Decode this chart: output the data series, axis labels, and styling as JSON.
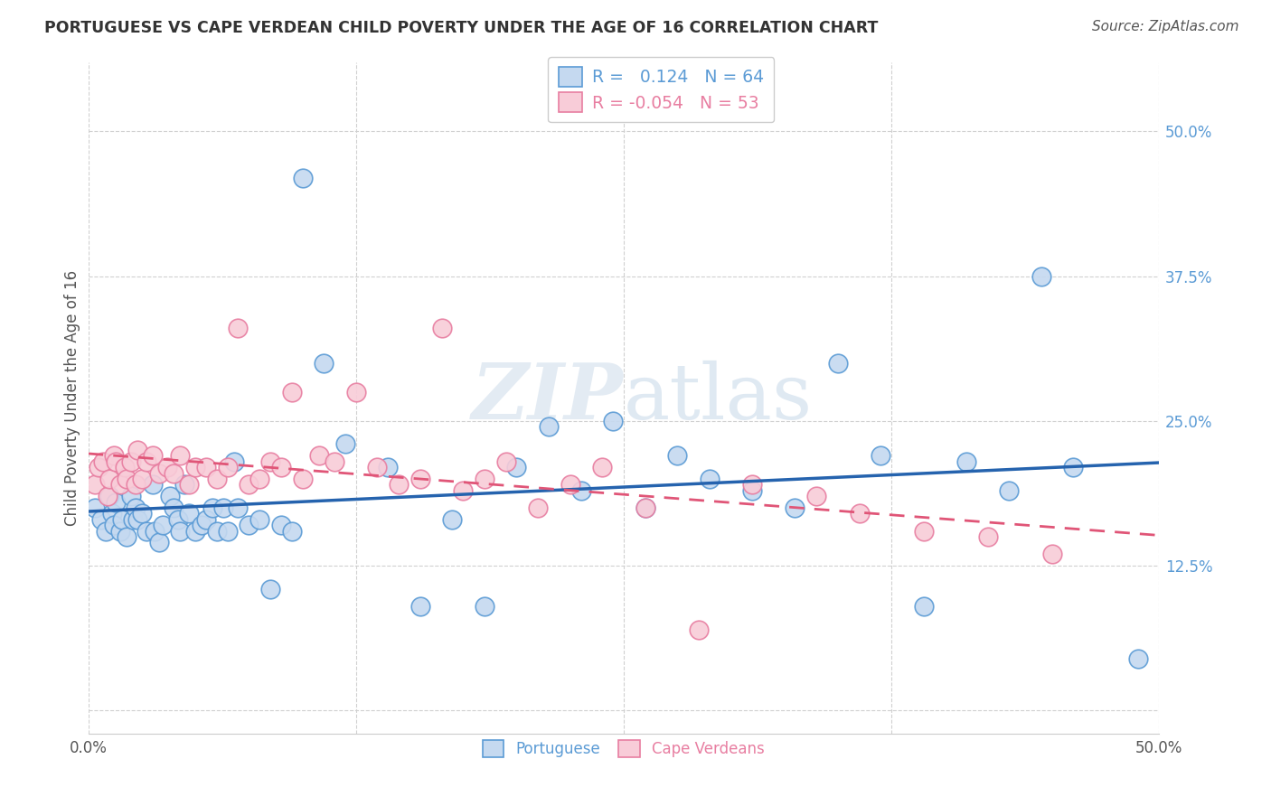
{
  "title": "PORTUGUESE VS CAPE VERDEAN CHILD POVERTY UNDER THE AGE OF 16 CORRELATION CHART",
  "source": "Source: ZipAtlas.com",
  "ylabel": "Child Poverty Under the Age of 16",
  "xlim": [
    0.0,
    0.5
  ],
  "ylim": [
    -0.02,
    0.56
  ],
  "ytick_labels_right": [
    "50.0%",
    "37.5%",
    "25.0%",
    "12.5%"
  ],
  "ytick_positions_right": [
    0.5,
    0.375,
    0.25,
    0.125
  ],
  "portuguese_color": "#c5d9f0",
  "cape_verdean_color": "#f8ccd8",
  "portuguese_edge": "#5b9bd5",
  "cape_verdean_edge": "#e87ea1",
  "trend_portuguese_color": "#2563ae",
  "trend_cape_verdean_color": "#e05577",
  "background_color": "#ffffff",
  "grid_color": "#d0d0d0",
  "legend_r_portuguese": "0.124",
  "legend_n_portuguese": "64",
  "legend_r_cape_verdean": "-0.054",
  "legend_n_cape_verdean": "53",
  "portuguese_x": [
    0.003,
    0.006,
    0.008,
    0.01,
    0.011,
    0.012,
    0.013,
    0.015,
    0.016,
    0.018,
    0.02,
    0.021,
    0.022,
    0.023,
    0.025,
    0.027,
    0.03,
    0.031,
    0.033,
    0.035,
    0.038,
    0.04,
    0.042,
    0.043,
    0.045,
    0.047,
    0.05,
    0.053,
    0.055,
    0.058,
    0.06,
    0.063,
    0.065,
    0.068,
    0.07,
    0.075,
    0.08,
    0.085,
    0.09,
    0.095,
    0.1,
    0.11,
    0.12,
    0.14,
    0.155,
    0.17,
    0.185,
    0.2,
    0.215,
    0.23,
    0.245,
    0.26,
    0.275,
    0.29,
    0.31,
    0.33,
    0.35,
    0.37,
    0.39,
    0.41,
    0.43,
    0.445,
    0.46,
    0.49
  ],
  "portuguese_y": [
    0.175,
    0.165,
    0.155,
    0.185,
    0.17,
    0.16,
    0.18,
    0.155,
    0.165,
    0.15,
    0.185,
    0.165,
    0.175,
    0.165,
    0.17,
    0.155,
    0.195,
    0.155,
    0.145,
    0.16,
    0.185,
    0.175,
    0.165,
    0.155,
    0.195,
    0.17,
    0.155,
    0.16,
    0.165,
    0.175,
    0.155,
    0.175,
    0.155,
    0.215,
    0.175,
    0.16,
    0.165,
    0.105,
    0.16,
    0.155,
    0.46,
    0.3,
    0.23,
    0.21,
    0.09,
    0.165,
    0.09,
    0.21,
    0.245,
    0.19,
    0.25,
    0.175,
    0.22,
    0.2,
    0.19,
    0.175,
    0.3,
    0.22,
    0.09,
    0.215,
    0.19,
    0.375,
    0.21,
    0.045
  ],
  "cape_verdean_x": [
    0.003,
    0.005,
    0.007,
    0.009,
    0.01,
    0.012,
    0.013,
    0.015,
    0.017,
    0.018,
    0.02,
    0.022,
    0.023,
    0.025,
    0.027,
    0.03,
    0.033,
    0.037,
    0.04,
    0.043,
    0.047,
    0.05,
    0.055,
    0.06,
    0.065,
    0.07,
    0.075,
    0.08,
    0.085,
    0.09,
    0.095,
    0.1,
    0.108,
    0.115,
    0.125,
    0.135,
    0.145,
    0.155,
    0.165,
    0.175,
    0.185,
    0.195,
    0.21,
    0.225,
    0.24,
    0.26,
    0.285,
    0.31,
    0.34,
    0.36,
    0.39,
    0.42,
    0.45
  ],
  "cape_verdean_y": [
    0.195,
    0.21,
    0.215,
    0.185,
    0.2,
    0.22,
    0.215,
    0.195,
    0.21,
    0.2,
    0.215,
    0.195,
    0.225,
    0.2,
    0.215,
    0.22,
    0.205,
    0.21,
    0.205,
    0.22,
    0.195,
    0.21,
    0.21,
    0.2,
    0.21,
    0.33,
    0.195,
    0.2,
    0.215,
    0.21,
    0.275,
    0.2,
    0.22,
    0.215,
    0.275,
    0.21,
    0.195,
    0.2,
    0.33,
    0.19,
    0.2,
    0.215,
    0.175,
    0.195,
    0.21,
    0.175,
    0.07,
    0.195,
    0.185,
    0.17,
    0.155,
    0.15,
    0.135
  ]
}
